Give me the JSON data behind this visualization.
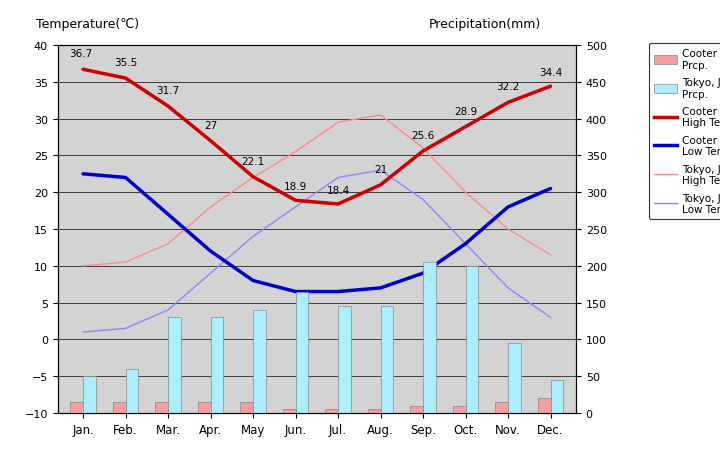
{
  "months": [
    "Jan.",
    "Feb.",
    "Mar.",
    "Apr.",
    "May",
    "Jun.",
    "Jul.",
    "Aug.",
    "Sep.",
    "Oct.",
    "Nov.",
    "Dec."
  ],
  "cooter_pedy_prcp": [
    15,
    15,
    15,
    15,
    15,
    5,
    5,
    5,
    10,
    10,
    15,
    20
  ],
  "tokyo_prcp": [
    50,
    60,
    130,
    130,
    140,
    165,
    145,
    145,
    205,
    200,
    95,
    45
  ],
  "cooter_pedy_high": [
    36.7,
    35.5,
    31.7,
    27,
    22.1,
    18.9,
    18.4,
    21,
    25.6,
    28.9,
    32.2,
    34.4
  ],
  "cooter_pedy_low": [
    22.5,
    22,
    17,
    12,
    8,
    6.5,
    6.5,
    7,
    9,
    13,
    18,
    20.5
  ],
  "tokyo_high": [
    10,
    10.5,
    13,
    18,
    22,
    25.5,
    29.5,
    30.5,
    26,
    20,
    15,
    11.5
  ],
  "tokyo_low": [
    1,
    1.5,
    4,
    9,
    14,
    18,
    22,
    23,
    19,
    13,
    7,
    3
  ],
  "title_left": "Temperature(℃)",
  "title_right": "Precipitation(mm)",
  "ylim_left": [
    -10,
    40
  ],
  "ylim_right": [
    0,
    500
  ],
  "yticks_left": [
    -10,
    -5,
    0,
    5,
    10,
    15,
    20,
    25,
    30,
    35,
    40
  ],
  "yticks_right": [
    0,
    50,
    100,
    150,
    200,
    250,
    300,
    350,
    400,
    450,
    500
  ],
  "bg_color": "#d3d3d3",
  "cooter_pedy_prcp_color": "#f4a0a0",
  "tokyo_prcp_color": "#aaeeff",
  "cooter_pedy_high_color": "#cc0000",
  "cooter_pedy_low_color": "#0000cc",
  "tokyo_high_color": "#ff8888",
  "tokyo_low_color": "#8888ff",
  "grid_color": "#000000",
  "legend_labels": [
    "Cooter Pedy\nPrcp.",
    "Tokyo, Japan\nPrcp.",
    "Cooter Pedy\nHigh Temp.",
    "Cooter Pedy\nLow Temp.",
    "Tokyo, Japan\nHigh Temp.",
    "Tokyo, Japan\nLow Temp."
  ],
  "high_label_offsets_x": [
    -0.05,
    0.0,
    0.0,
    0.0,
    0.0,
    0.0,
    0.0,
    0.0,
    0.0,
    0.0,
    0.0,
    0.0
  ],
  "high_label_offsets_y": [
    1.5,
    1.5,
    1.5,
    1.5,
    1.5,
    1.2,
    1.2,
    1.5,
    1.5,
    1.5,
    1.5,
    1.2
  ]
}
